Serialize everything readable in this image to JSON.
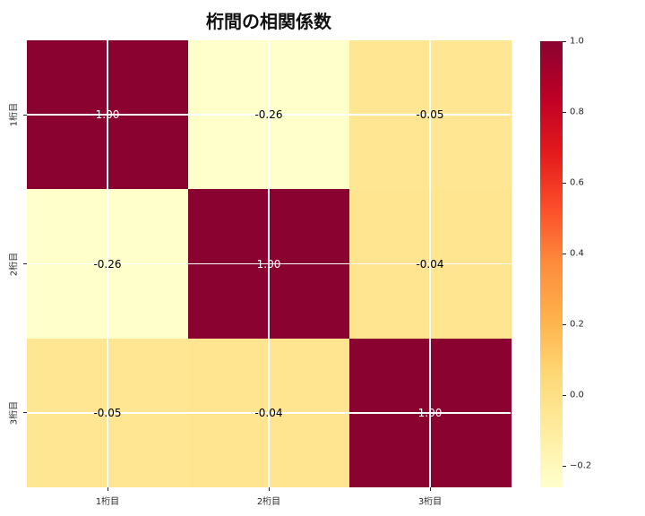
{
  "chart_data": {
    "type": "heatmap",
    "title": "桁間の相関係数",
    "x_tick_labels": [
      "1桁目",
      "2桁目",
      "3桁目"
    ],
    "y_tick_labels": [
      "1桁目",
      "2桁目",
      "3桁目"
    ],
    "matrix": [
      [
        1.0,
        -0.26,
        -0.05
      ],
      [
        -0.26,
        1.0,
        -0.04
      ],
      [
        -0.05,
        -0.04,
        1.0
      ]
    ],
    "cell_labels": [
      [
        "1.00",
        "-0.26",
        "-0.05"
      ],
      [
        "-0.26",
        "1.00",
        "-0.04"
      ],
      [
        "-0.05",
        "-0.04",
        "1.00"
      ]
    ],
    "vmin": -0.26,
    "vmax": 1.0,
    "colormap_name": "YlOrRd",
    "colormap_stops": [
      "#ffffcc",
      "#ffeda0",
      "#fed976",
      "#feb24c",
      "#fd8d3c",
      "#fc4e2a",
      "#e31a1c",
      "#bd0026",
      "#8a0230"
    ],
    "colorbar": {
      "tick_values": [
        1.0,
        0.8,
        0.6,
        0.4,
        0.2,
        0.0,
        -0.2
      ],
      "tick_labels": [
        "1.0",
        "0.8",
        "0.6",
        "0.4",
        "0.2",
        "0.0",
        "−0.2"
      ]
    },
    "annotation_colors": {
      "light": "#ffffff",
      "dark": "#000000"
    },
    "annotation_light_threshold": 0.5,
    "gridline_color": "#ffffff",
    "background_color": "#ffffff",
    "grid": true,
    "legend_position": "right-colorbar"
  }
}
